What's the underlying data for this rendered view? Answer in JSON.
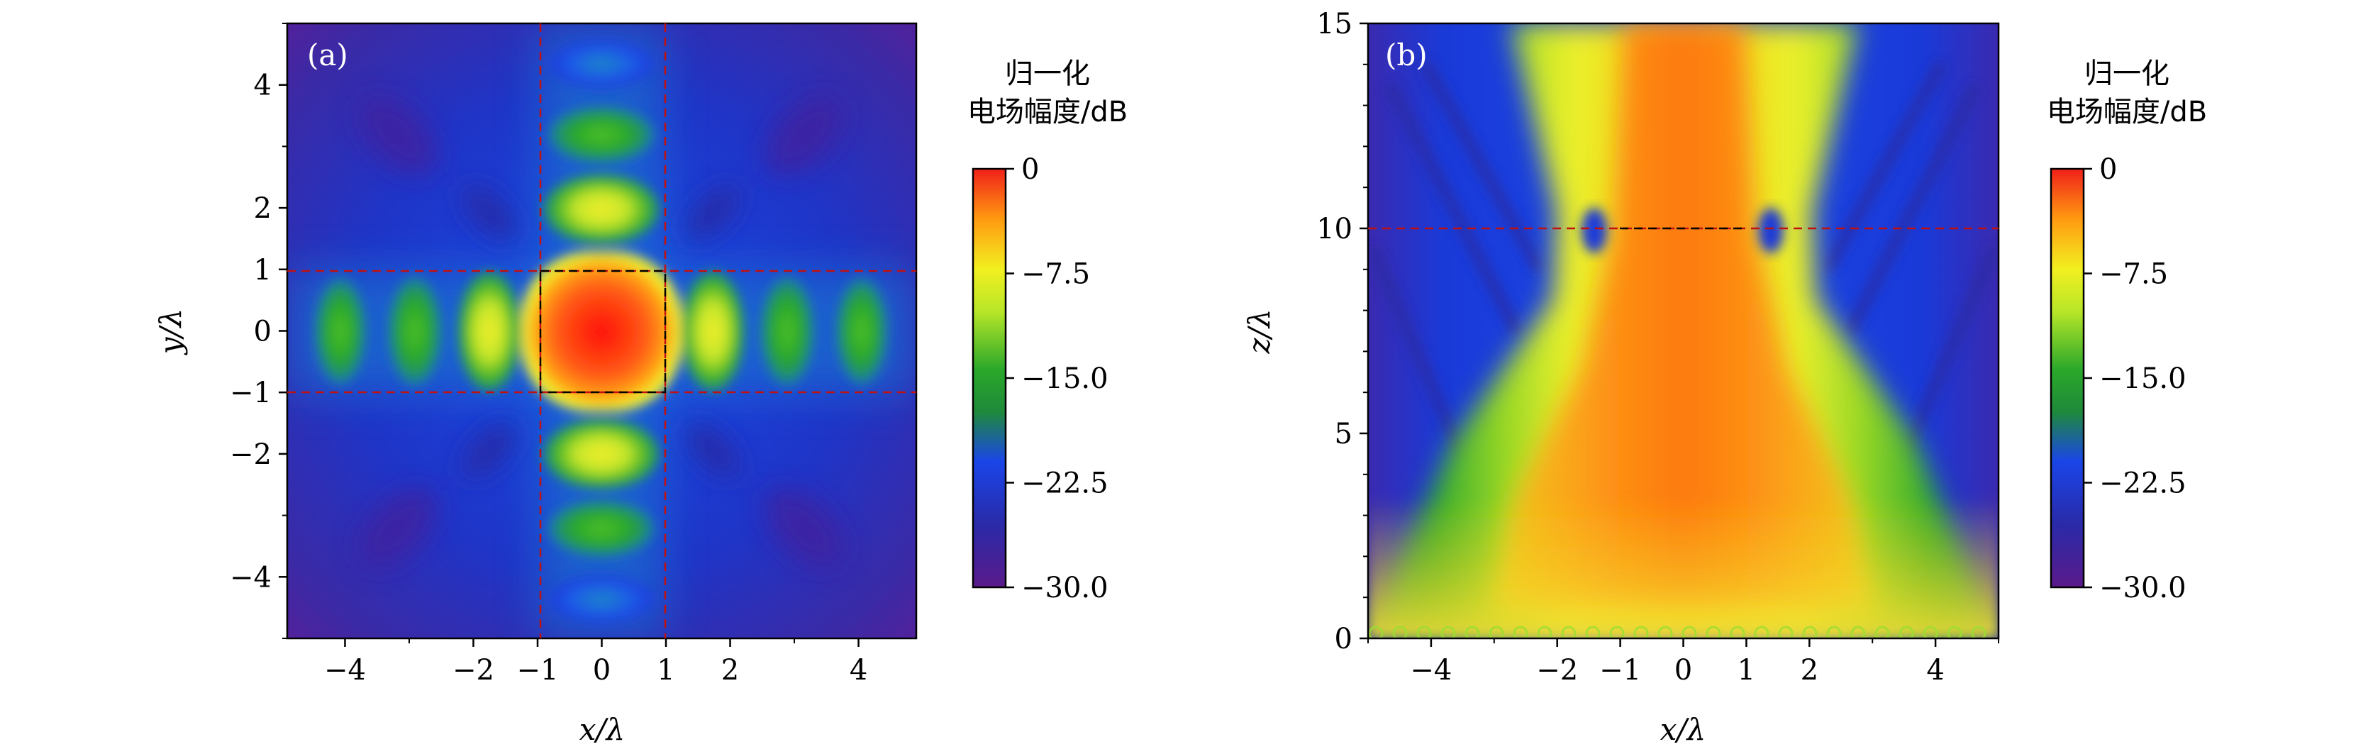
{
  "chart_data": [
    {
      "type": "heatmap",
      "panel_label": "(a)",
      "xlabel": "x/λ",
      "ylabel": "y/λ",
      "xlim": [
        -4.9,
        4.9
      ],
      "ylim": [
        -5.0,
        5.0
      ],
      "x_ticks": [
        -4,
        -2,
        -1,
        0,
        1,
        2,
        4
      ],
      "y_ticks": [
        4,
        2,
        1,
        0,
        -1,
        -2,
        -4
      ],
      "x_tick_labels": [
        "−4",
        "−2",
        "−1",
        "0",
        "1",
        "2",
        "4"
      ],
      "y_tick_labels": [
        "4",
        "2",
        "1",
        "0",
        "−1",
        "−2",
        "−4"
      ],
      "colorbar": {
        "title_line1": "归一化",
        "title_line2": "电场幅度/dB",
        "range": [
          -30.0,
          0
        ],
        "ticks": [
          0,
          -7.5,
          -15.0,
          -22.5,
          -30.0
        ],
        "tick_labels": [
          "0",
          "−7.5",
          "−15.0",
          "−22.5",
          "−30.0"
        ]
      },
      "dashed_guides": {
        "red_vertical_x": [
          -1,
          1
        ],
        "red_horizontal_y": [
          -1,
          1
        ],
        "black_box": [
          -1,
          1,
          -1,
          1
        ]
      }
    },
    {
      "type": "heatmap",
      "panel_label": "(b)",
      "xlabel": "x/λ",
      "ylabel": "z/λ",
      "xlim": [
        -5.0,
        5.0
      ],
      "ylim": [
        0,
        15
      ],
      "x_ticks": [
        -4,
        -2,
        -1,
        0,
        1,
        2,
        4
      ],
      "y_ticks": [
        0,
        5,
        10,
        15
      ],
      "x_tick_labels": [
        "−4",
        "−2",
        "−1",
        "0",
        "1",
        "2",
        "4"
      ],
      "y_tick_labels": [
        "0",
        "5",
        "10",
        "15"
      ],
      "colorbar": {
        "title_line1": "归一化",
        "title_line2": "电场幅度/dB",
        "range": [
          -30.0,
          0
        ],
        "ticks": [
          0,
          -7.5,
          -15.0,
          -22.5,
          -30.0
        ],
        "tick_labels": [
          "0",
          "−7.5",
          "−15.0",
          "−22.5",
          "−30.0"
        ]
      },
      "dashed_guides": {
        "red_horizontal_z": 10,
        "black_horizontal_z": 10,
        "black_horizontal_x_range": [
          -1,
          1
        ]
      }
    }
  ]
}
